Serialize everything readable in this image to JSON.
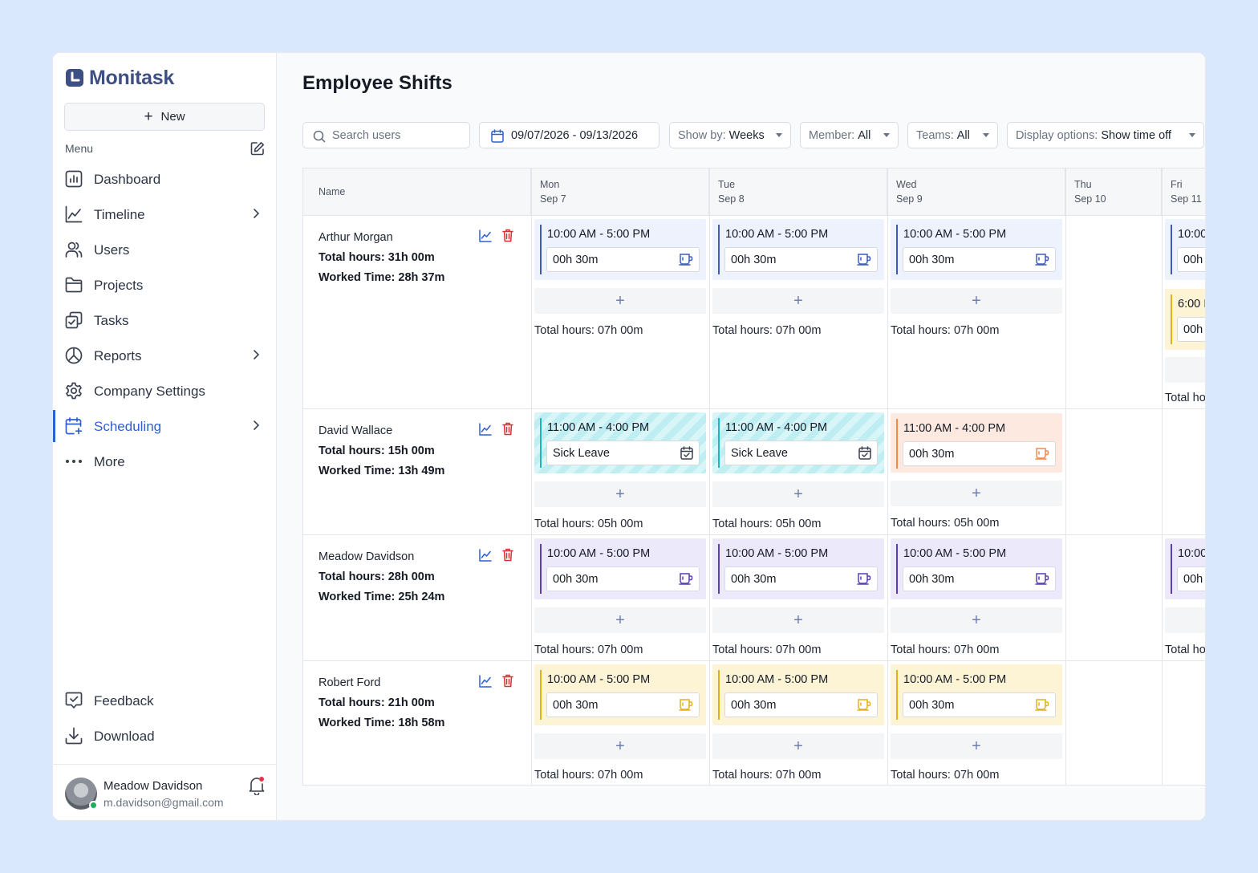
{
  "app": {
    "name": "Monitask"
  },
  "sidebar": {
    "new_label": "New",
    "menu_label": "Menu",
    "items": [
      {
        "label": "Dashboard"
      },
      {
        "label": "Timeline"
      },
      {
        "label": "Users"
      },
      {
        "label": "Projects"
      },
      {
        "label": "Tasks"
      },
      {
        "label": "Reports"
      },
      {
        "label": "Company Settings"
      },
      {
        "label": "Scheduling"
      },
      {
        "label": "More"
      }
    ],
    "bottom_items": [
      {
        "label": "Feedback"
      },
      {
        "label": "Download"
      }
    ],
    "user": {
      "name": "Meadow Davidson",
      "email": "m.davidson@gmail.com"
    }
  },
  "page": {
    "title": "Employee Shifts"
  },
  "toolbar": {
    "search_placeholder": "Search users",
    "date_range": "09/07/2026 - 09/13/2026",
    "show_by_label": "Show by:",
    "show_by_value": "Weeks",
    "member_label": "Member:",
    "member_value": "All",
    "teams_label": "Teams:",
    "teams_value": "All",
    "display_label": "Display options:",
    "display_value": "Show time off"
  },
  "grid": {
    "name_header": "Name",
    "days": [
      {
        "dow": "Mon",
        "date": "Sep 7"
      },
      {
        "dow": "Tue",
        "date": "Sep 8"
      },
      {
        "dow": "Wed",
        "date": "Sep 9"
      },
      {
        "dow": "Thu",
        "date": "Sep 10"
      },
      {
        "dow": "Fri",
        "date": "Sep 11"
      }
    ],
    "rows": [
      {
        "name": "Arthur Morgan",
        "total_hours": "Total hours: 31h 00m",
        "worked_time": "Worked Time: 28h 37m",
        "day_totals": [
          "Total hours: 07h 00m",
          "Total hours: 07h 00m",
          "Total hours: 07h 00m",
          "Total ho"
        ],
        "shifts": [
          {
            "time": "10:00 AM - 5:00 PM",
            "detail": "00h 30m",
            "color": "#eef2fd",
            "bar": "#3f5bbd",
            "icon": "#3f5bbd"
          },
          {
            "time": "10:00 AM - 5:00 PM",
            "detail": "00h 30m",
            "color": "#eef2fd",
            "bar": "#3f5bbd",
            "icon": "#3f5bbd"
          },
          {
            "time": "10:00 AM - 5:00 PM",
            "detail": "00h 30m",
            "color": "#eef2fd",
            "bar": "#3f5bbd",
            "icon": "#3f5bbd"
          },
          {
            "time": "10:00",
            "detail": "00h 3",
            "color": "#eef2fd",
            "bar": "#3f5bbd"
          },
          {
            "time": "6:00 I",
            "detail": "00h",
            "color": "#fdf4d6",
            "bar": "#e0b21a"
          }
        ]
      },
      {
        "name": "David Wallace",
        "total_hours": "Total hours: 15h 00m",
        "worked_time": "Worked Time: 13h 49m",
        "day_totals": [
          "Total hours: 05h 00m",
          "Total hours: 05h 00m",
          "Total hours: 05h 00m"
        ],
        "shifts": [
          {
            "time": "11:00 AM - 4:00 PM",
            "detail": "Sick Leave",
            "color": "#d8f5f7",
            "bar": "#1ab6c2",
            "icon": "#3a4150"
          },
          {
            "time": "11:00 AM - 4:00 PM",
            "detail": "Sick Leave",
            "color": "#d8f5f7",
            "bar": "#1ab6c2",
            "icon": "#3a4150"
          },
          {
            "time": "11:00 AM - 4:00 PM",
            "detail": "00h 30m",
            "color": "#fde9df",
            "bar": "#f08a4b",
            "icon": "#f08a4b"
          }
        ]
      },
      {
        "name": "Meadow Davidson",
        "total_hours": "Total hours: 28h 00m",
        "worked_time": "Worked Time: 25h 24m",
        "day_totals": [
          "Total hours: 07h 00m",
          "Total hours: 07h 00m",
          "Total hours: 07h 00m",
          "Total ho"
        ],
        "shifts": [
          {
            "time": "10:00 AM - 5:00 PM",
            "detail": "00h 30m",
            "color": "#ece9fb",
            "bar": "#5b3fb0",
            "icon": "#5b3fb0"
          },
          {
            "time": "10:00 AM - 5:00 PM",
            "detail": "00h 30m",
            "color": "#ece9fb",
            "bar": "#5b3fb0",
            "icon": "#5b3fb0"
          },
          {
            "time": "10:00 AM - 5:00 PM",
            "detail": "00h 30m",
            "color": "#ece9fb",
            "bar": "#5b3fb0",
            "icon": "#5b3fb0"
          },
          {
            "time": "10:00",
            "detail": "00h",
            "color": "#ece9fb",
            "bar": "#5b3fb0"
          }
        ]
      },
      {
        "name": "Robert Ford",
        "total_hours": "Total hours: 21h 00m",
        "worked_time": "Worked Time: 18h 58m",
        "day_totals": [
          "Total hours: 07h 00m",
          "Total hours: 07h 00m",
          "Total hours: 07h 00m"
        ],
        "shifts": [
          {
            "time": "10:00 AM - 5:00 PM",
            "detail": "00h 30m",
            "color": "#fdf4d6",
            "bar": "#e0b21a",
            "icon": "#e0b21a"
          },
          {
            "time": "10:00 AM - 5:00 PM",
            "detail": "00h 30m",
            "color": "#fdf4d6",
            "bar": "#e0b21a",
            "icon": "#e0b21a"
          },
          {
            "time": "10:00 AM - 5:00 PM",
            "detail": "00h 30m",
            "color": "#fdf4d6",
            "bar": "#e0b21a",
            "icon": "#e0b21a"
          }
        ]
      }
    ]
  },
  "colors": {
    "accent": "#2f5fd0",
    "brand": "#3e4f84",
    "delete": "#d93030"
  }
}
